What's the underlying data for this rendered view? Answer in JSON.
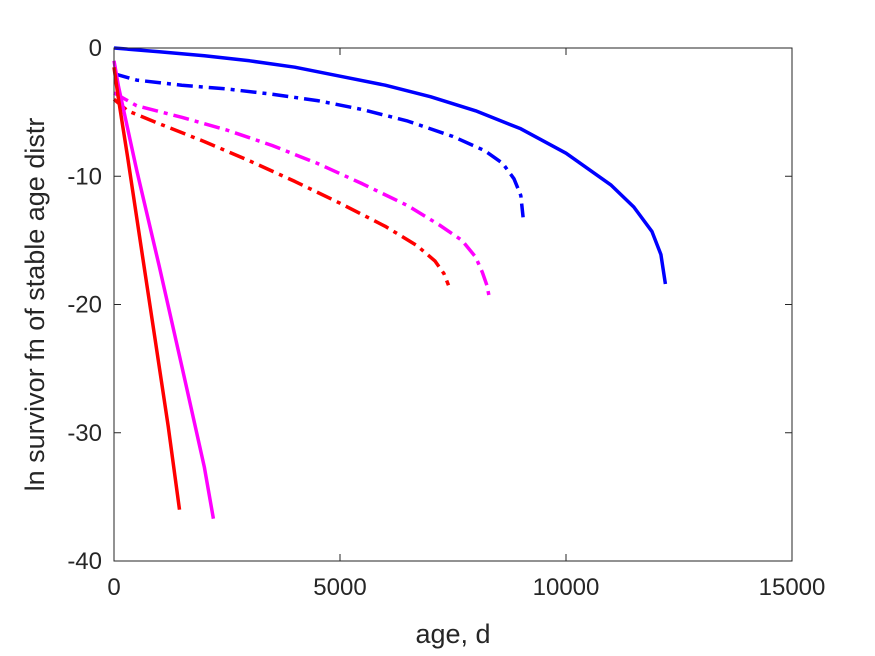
{
  "chart_data": {
    "type": "line",
    "title": "",
    "xlabel": "age, d",
    "ylabel": "ln survivor fn of stable age distr",
    "xlim": [
      0,
      15000
    ],
    "ylim": [
      -40,
      0
    ],
    "xticks": [
      0,
      5000,
      10000,
      15000
    ],
    "xtick_labels": [
      "0",
      "5000",
      "10000",
      "15000"
    ],
    "yticks": [
      0,
      -10,
      -20,
      -30,
      -40
    ],
    "ytick_labels": [
      "0",
      "-10",
      "-20",
      "-30",
      "-40"
    ],
    "grid": false,
    "legend": "none",
    "series": [
      {
        "color": "#0000ff",
        "style": "solid",
        "x": [
          0,
          1000,
          2000,
          3000,
          4000,
          5000,
          6000,
          7000,
          8000,
          9000,
          10000,
          11000,
          11500,
          11900,
          12100,
          12200
        ],
        "y": [
          0,
          -0.3,
          -0.6,
          -1.0,
          -1.5,
          -2.2,
          -2.9,
          -3.8,
          -4.9,
          -6.3,
          -8.2,
          -10.7,
          -12.4,
          -14.3,
          -16.1,
          -18.4
        ]
      },
      {
        "color": "#0000ff",
        "style": "dashdot",
        "x": [
          0,
          500,
          1500,
          2500,
          3500,
          4500,
          5500,
          6500,
          7500,
          8200,
          8600,
          8850,
          9000,
          9050
        ],
        "y": [
          -2.0,
          -2.5,
          -2.9,
          -3.2,
          -3.6,
          -4.1,
          -4.8,
          -5.7,
          -6.9,
          -8.0,
          -9.0,
          -10.2,
          -11.5,
          -13.2
        ]
      },
      {
        "color": "#ff00ff",
        "style": "dashdot",
        "x": [
          0,
          500,
          1500,
          2500,
          3500,
          4500,
          5500,
          6500,
          7200,
          7700,
          8000,
          8150,
          8250,
          8300
        ],
        "y": [
          -3.5,
          -4.5,
          -5.4,
          -6.4,
          -7.6,
          -9.0,
          -10.6,
          -12.3,
          -13.8,
          -15.0,
          -16.3,
          -17.5,
          -18.5,
          -19.4
        ]
      },
      {
        "color": "#ff0000",
        "style": "dashdot",
        "x": [
          0,
          300,
          1000,
          2000,
          3000,
          4000,
          5000,
          6000,
          6700,
          7100,
          7300,
          7400
        ],
        "y": [
          -4.0,
          -4.9,
          -5.9,
          -7.3,
          -8.8,
          -10.4,
          -12.1,
          -13.9,
          -15.4,
          -16.6,
          -17.6,
          -18.5
        ]
      },
      {
        "color": "#ff00ff",
        "style": "solid",
        "x": [
          0,
          100,
          500,
          1000,
          1500,
          2000,
          2200
        ],
        "y": [
          -1.0,
          -3.0,
          -9.5,
          -17.0,
          -24.8,
          -32.7,
          -36.7
        ]
      },
      {
        "color": "#ff0000",
        "style": "solid",
        "x": [
          0,
          100,
          300,
          600,
          900,
          1200,
          1450
        ],
        "y": [
          -1.5,
          -4.0,
          -8.5,
          -15.5,
          -22.5,
          -29.5,
          -36.0
        ]
      }
    ]
  }
}
